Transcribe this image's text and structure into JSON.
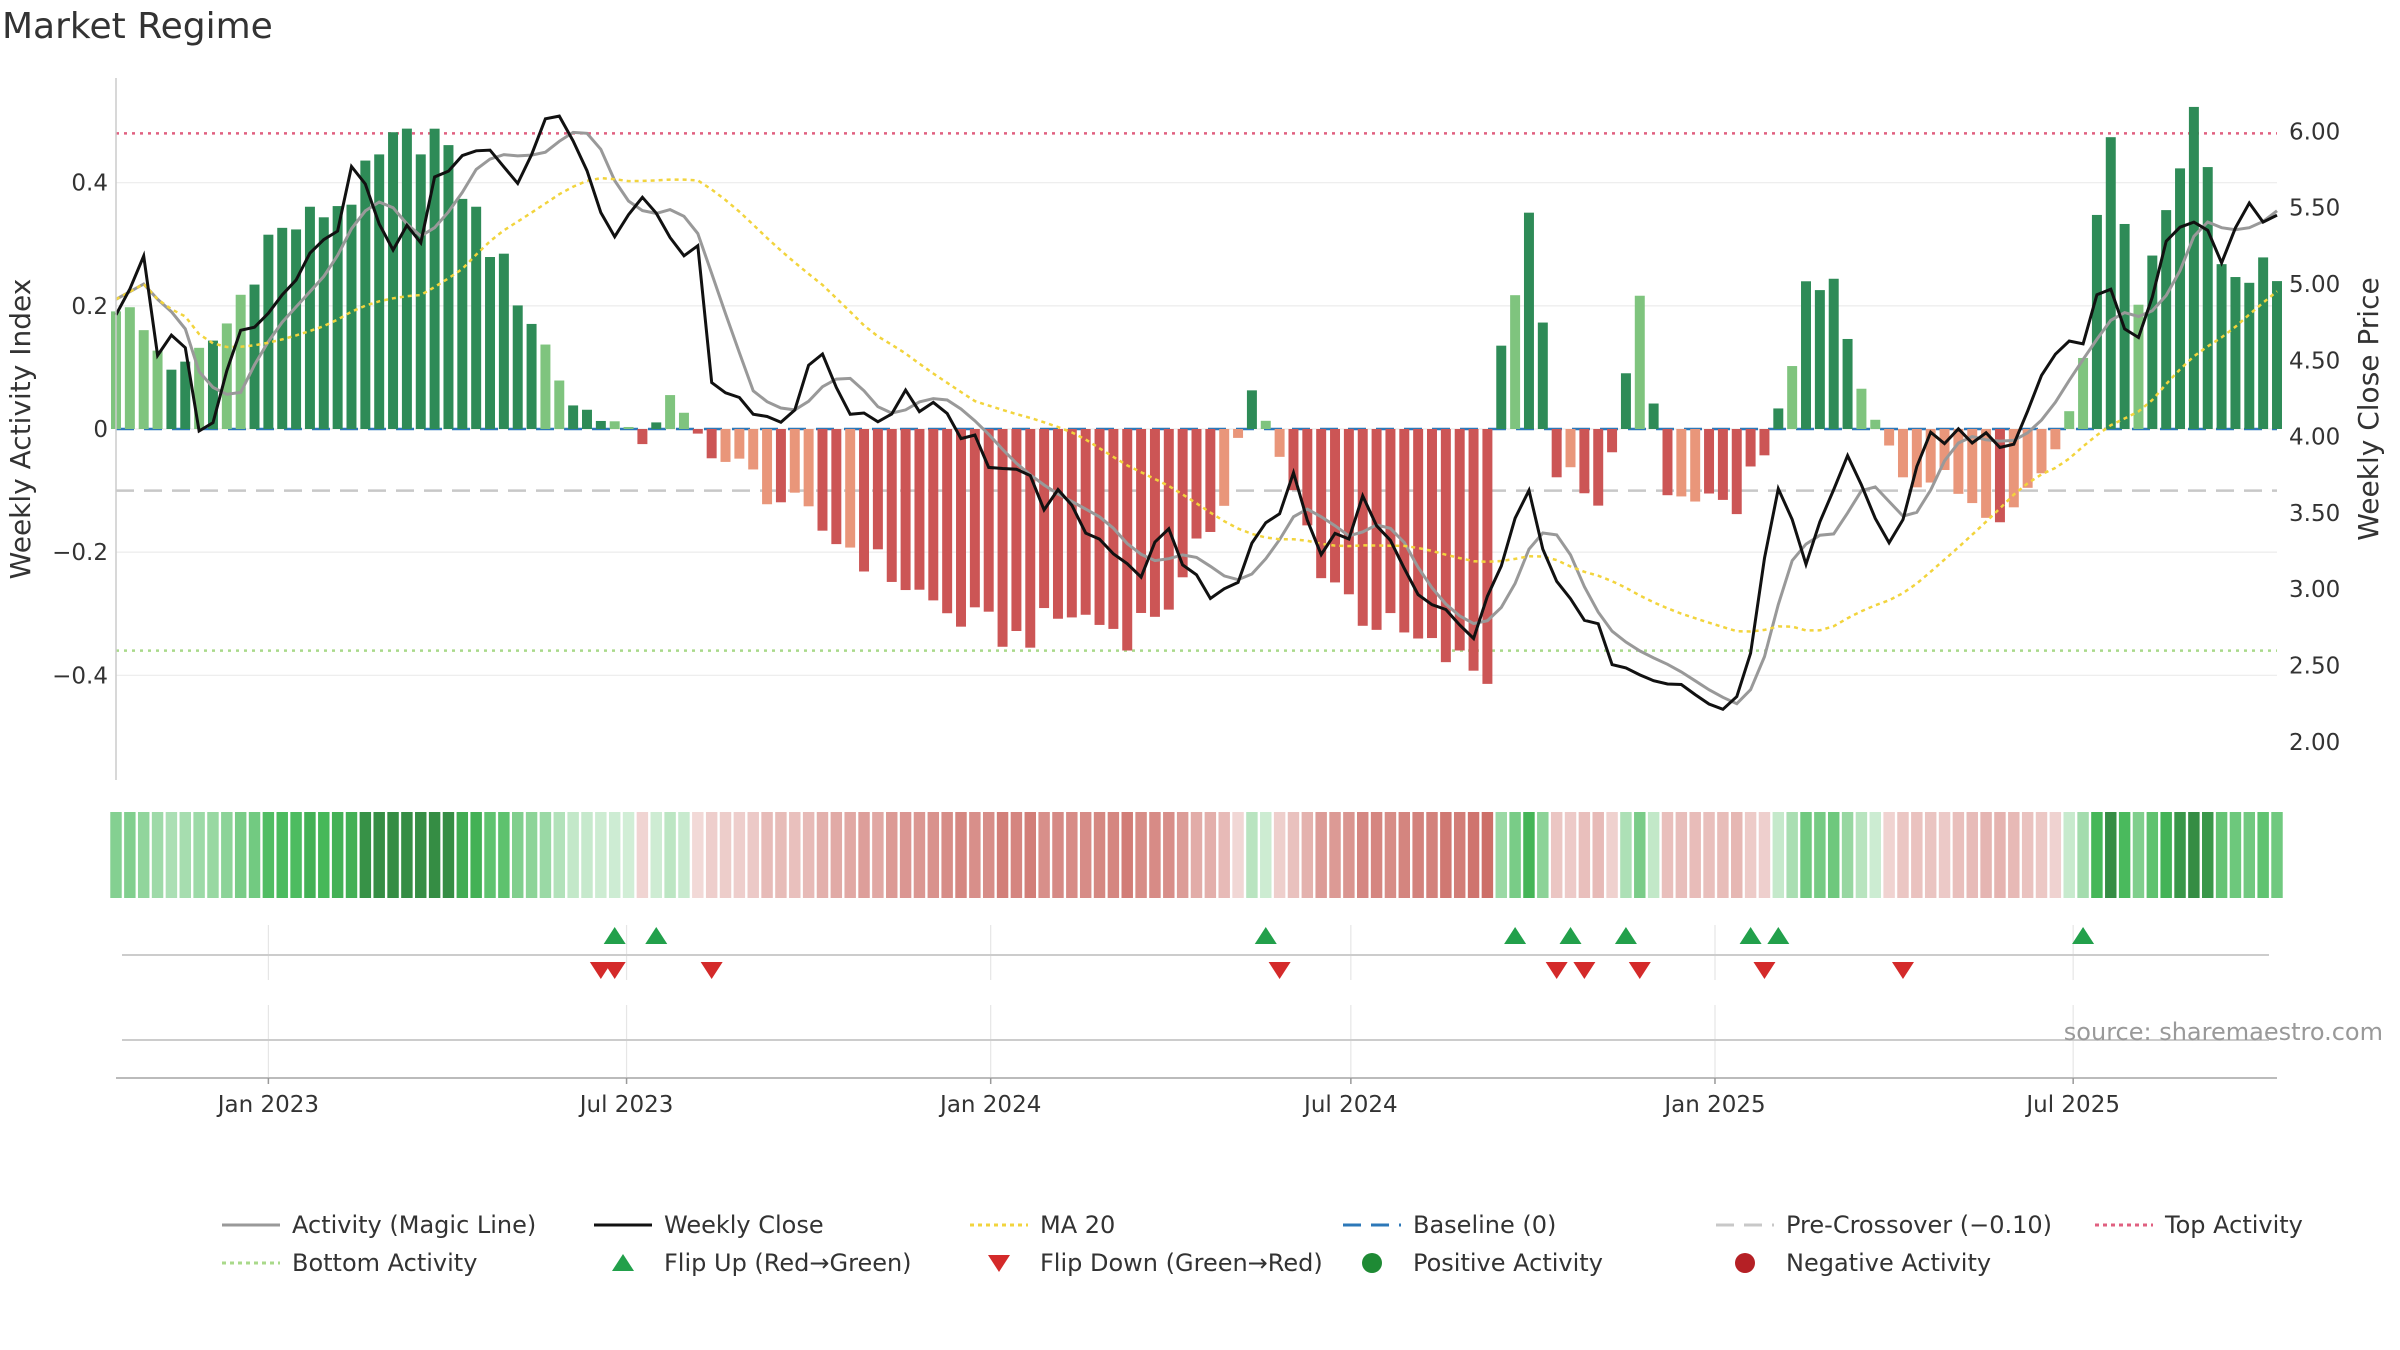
{
  "title": "Market Regime",
  "source": "source: sharemaestro.com",
  "chart_data": {
    "type": "bar",
    "ylabel_left": "Weekly Activity Index",
    "ylabel_right": "Weekly Close Price",
    "ylim_left": [
      -0.57,
      0.57
    ],
    "ylim_right": [
      1.75,
      6.35
    ],
    "yticks_left": [
      {
        "v": 0.4,
        "label": "0.4"
      },
      {
        "v": 0.2,
        "label": "0.2"
      },
      {
        "v": 0,
        "label": "0"
      },
      {
        "v": -0.2,
        "label": "−0.2"
      },
      {
        "v": -0.4,
        "label": "−0.4"
      }
    ],
    "yticks_right": [
      {
        "v": 6.0,
        "label": "6.00"
      },
      {
        "v": 5.5,
        "label": "5.50"
      },
      {
        "v": 5.0,
        "label": "5.00"
      },
      {
        "v": 4.5,
        "label": "4.50"
      },
      {
        "v": 4.0,
        "label": "4.00"
      },
      {
        "v": 3.5,
        "label": "3.50"
      },
      {
        "v": 3.0,
        "label": "3.00"
      },
      {
        "v": 2.5,
        "label": "2.50"
      },
      {
        "v": 2.0,
        "label": "2.00"
      }
    ],
    "x_start": "2022-10-16",
    "x_end": "2025-10-12",
    "x_ticks": [
      {
        "date": "2023-01-01",
        "label": "Jan 2023"
      },
      {
        "date": "2023-07-01",
        "label": "Jul 2023"
      },
      {
        "date": "2024-01-01",
        "label": "Jan 2024"
      },
      {
        "date": "2024-07-01",
        "label": "Jul 2024"
      },
      {
        "date": "2025-01-01",
        "label": "Jan 2025"
      },
      {
        "date": "2025-07-01",
        "label": "Jul 2025"
      }
    ],
    "reference_lines": {
      "baseline": 0,
      "pre_crossover": -0.1,
      "top_activity": 0.48,
      "bottom_activity": -0.36
    },
    "activity_keyframes": [
      [
        "2022-10-16",
        0.21
      ],
      [
        "2022-11-06",
        0.13
      ],
      [
        "2022-11-20",
        0.09
      ],
      [
        "2022-12-11",
        0.17
      ],
      [
        "2023-01-01",
        0.31
      ],
      [
        "2023-01-22",
        0.34
      ],
      [
        "2023-02-12",
        0.38
      ],
      [
        "2023-03-05",
        0.46
      ],
      [
        "2023-03-26",
        0.48
      ],
      [
        "2023-04-23",
        0.3
      ],
      [
        "2023-05-14",
        0.18
      ],
      [
        "2023-06-04",
        0.04
      ],
      [
        "2023-06-25",
        0.01
      ],
      [
        "2023-07-09",
        -0.02
      ],
      [
        "2023-07-23",
        0.05
      ],
      [
        "2023-08-13",
        -0.04
      ],
      [
        "2023-09-03",
        -0.08
      ],
      [
        "2023-10-01",
        -0.15
      ],
      [
        "2023-11-05",
        -0.22
      ],
      [
        "2023-12-10",
        -0.3
      ],
      [
        "2024-01-14",
        -0.34
      ],
      [
        "2024-02-11",
        -0.3
      ],
      [
        "2024-03-10",
        -0.33
      ],
      [
        "2024-04-07",
        -0.26
      ],
      [
        "2024-04-28",
        -0.1
      ],
      [
        "2024-05-12",
        0.07
      ],
      [
        "2024-05-26",
        -0.05
      ],
      [
        "2024-06-16",
        -0.22
      ],
      [
        "2024-07-07",
        -0.3
      ],
      [
        "2024-08-04",
        -0.35
      ],
      [
        "2024-09-08",
        -0.4
      ],
      [
        "2024-09-15",
        0.13
      ],
      [
        "2024-09-29",
        0.36
      ],
      [
        "2024-10-13",
        -0.06
      ],
      [
        "2024-11-03",
        -0.14
      ],
      [
        "2024-11-24",
        0.19
      ],
      [
        "2024-12-08",
        -0.11
      ],
      [
        "2025-01-05",
        -0.14
      ],
      [
        "2025-01-26",
        -0.05
      ],
      [
        "2025-02-16",
        0.21
      ],
      [
        "2025-03-02",
        0.23
      ],
      [
        "2025-03-16",
        0.05
      ],
      [
        "2025-04-06",
        -0.06
      ],
      [
        "2025-05-04",
        -0.1
      ],
      [
        "2025-06-01",
        -0.13
      ],
      [
        "2025-06-22",
        -0.03
      ],
      [
        "2025-07-06",
        0.14
      ],
      [
        "2025-07-20",
        0.5
      ],
      [
        "2025-08-03",
        0.2
      ],
      [
        "2025-08-31",
        0.53
      ],
      [
        "2025-09-14",
        0.27
      ],
      [
        "2025-10-05",
        0.25
      ]
    ],
    "price_series": [
      [
        "2022-10-16",
        4.9
      ],
      [
        "2022-10-30",
        5.1
      ],
      [
        "2022-11-06",
        4.6
      ],
      [
        "2022-11-20",
        4.55
      ],
      [
        "2022-11-27",
        3.98
      ],
      [
        "2022-12-18",
        4.6
      ],
      [
        "2023-01-08",
        4.9
      ],
      [
        "2023-01-29",
        5.2
      ],
      [
        "2023-02-12",
        5.7
      ],
      [
        "2023-03-05",
        5.3
      ],
      [
        "2023-03-19",
        5.25
      ],
      [
        "2023-03-26",
        5.65
      ],
      [
        "2023-04-23",
        5.92
      ],
      [
        "2023-05-07",
        5.75
      ],
      [
        "2023-05-28",
        6.12
      ],
      [
        "2023-06-11",
        5.85
      ],
      [
        "2023-06-25",
        5.3
      ],
      [
        "2023-07-09",
        5.6
      ],
      [
        "2023-07-23",
        5.4
      ],
      [
        "2023-08-06",
        5.15
      ],
      [
        "2023-08-13",
        4.45
      ],
      [
        "2023-09-03",
        4.15
      ],
      [
        "2023-09-24",
        4.2
      ],
      [
        "2023-10-08",
        4.55
      ],
      [
        "2023-10-29",
        4.05
      ],
      [
        "2023-11-19",
        4.3
      ],
      [
        "2023-12-10",
        4.18
      ],
      [
        "2023-12-24",
        3.95
      ],
      [
        "2024-01-14",
        3.7
      ],
      [
        "2024-02-04",
        3.55
      ],
      [
        "2024-02-25",
        3.4
      ],
      [
        "2024-03-10",
        3.1
      ],
      [
        "2024-03-31",
        3.3
      ],
      [
        "2024-04-21",
        3.0
      ],
      [
        "2024-05-05",
        3.1
      ],
      [
        "2024-05-19",
        3.4
      ],
      [
        "2024-06-02",
        3.7
      ],
      [
        "2024-06-16",
        3.2
      ],
      [
        "2024-07-07",
        3.55
      ],
      [
        "2024-08-04",
        2.9
      ],
      [
        "2024-09-01",
        2.7
      ],
      [
        "2024-09-29",
        3.6
      ],
      [
        "2024-10-20",
        2.85
      ],
      [
        "2024-11-10",
        2.6
      ],
      [
        "2024-12-01",
        2.5
      ],
      [
        "2024-12-22",
        2.3
      ],
      [
        "2025-01-12",
        2.2
      ],
      [
        "2025-02-02",
        3.6
      ],
      [
        "2025-02-16",
        3.1
      ],
      [
        "2025-03-09",
        3.9
      ],
      [
        "2025-03-30",
        3.25
      ],
      [
        "2025-04-20",
        4.05
      ],
      [
        "2025-05-11",
        3.95
      ],
      [
        "2025-06-01",
        4.0
      ],
      [
        "2025-06-22",
        4.45
      ],
      [
        "2025-07-06",
        4.7
      ],
      [
        "2025-07-20",
        4.95
      ],
      [
        "2025-08-03",
        4.6
      ],
      [
        "2025-08-17",
        5.35
      ],
      [
        "2025-08-31",
        5.5
      ],
      [
        "2025-09-14",
        5.2
      ],
      [
        "2025-09-28",
        5.55
      ],
      [
        "2025-10-12",
        5.48
      ]
    ],
    "flip_up_dates": [
      "2023-06-25",
      "2023-07-16",
      "2024-05-19",
      "2024-09-22",
      "2024-10-20",
      "2024-11-17",
      "2025-01-19",
      "2025-02-02",
      "2025-07-06"
    ],
    "flip_down_dates": [
      "2023-06-18",
      "2023-06-25",
      "2023-08-13",
      "2024-05-26",
      "2024-10-13",
      "2024-10-27",
      "2024-11-24",
      "2025-01-26",
      "2025-04-06"
    ],
    "legend_position": "bottom",
    "legend": [
      {
        "name": "Activity (Magic Line)",
        "kind": "line",
        "color": "#999999"
      },
      {
        "name": "Weekly Close",
        "kind": "line",
        "color": "#111111"
      },
      {
        "name": "MA 20",
        "kind": "dotted",
        "color": "#f2d43d"
      },
      {
        "name": "Baseline (0)",
        "kind": "dashed",
        "color": "#2d78b8"
      },
      {
        "name": "Pre-Crossover (−0.10)",
        "kind": "dashed",
        "color": "#c8c8c8"
      },
      {
        "name": "Top Activity",
        "kind": "dotted",
        "color": "#e06080"
      },
      {
        "name": "Bottom Activity",
        "kind": "dotted",
        "color": "#a9d98a"
      },
      {
        "name": "Flip Up (Red→Green)",
        "kind": "tri-up",
        "color": "#22a04b"
      },
      {
        "name": "Flip Down (Green→Red)",
        "kind": "tri-down",
        "color": "#d42a2a"
      },
      {
        "name": "Positive Activity",
        "kind": "dot",
        "color": "#1e8a34"
      },
      {
        "name": "Negative Activity",
        "kind": "dot",
        "color": "#b52025"
      }
    ],
    "colors": {
      "pos_strong": "#2e8b57",
      "pos_light": "#7fc47e",
      "neg_strong": "#cc5555",
      "neg_light": "#e9967a",
      "magic_line": "#999999",
      "close_line": "#111111",
      "ma_line": "#f2d43d",
      "baseline": "#2d78b8",
      "pre_crossover": "#c8c8c8",
      "top_activity": "#e06080",
      "bottom_activity": "#a9d98a",
      "flip_up": "#22a04b",
      "flip_down": "#d42a2a"
    }
  }
}
